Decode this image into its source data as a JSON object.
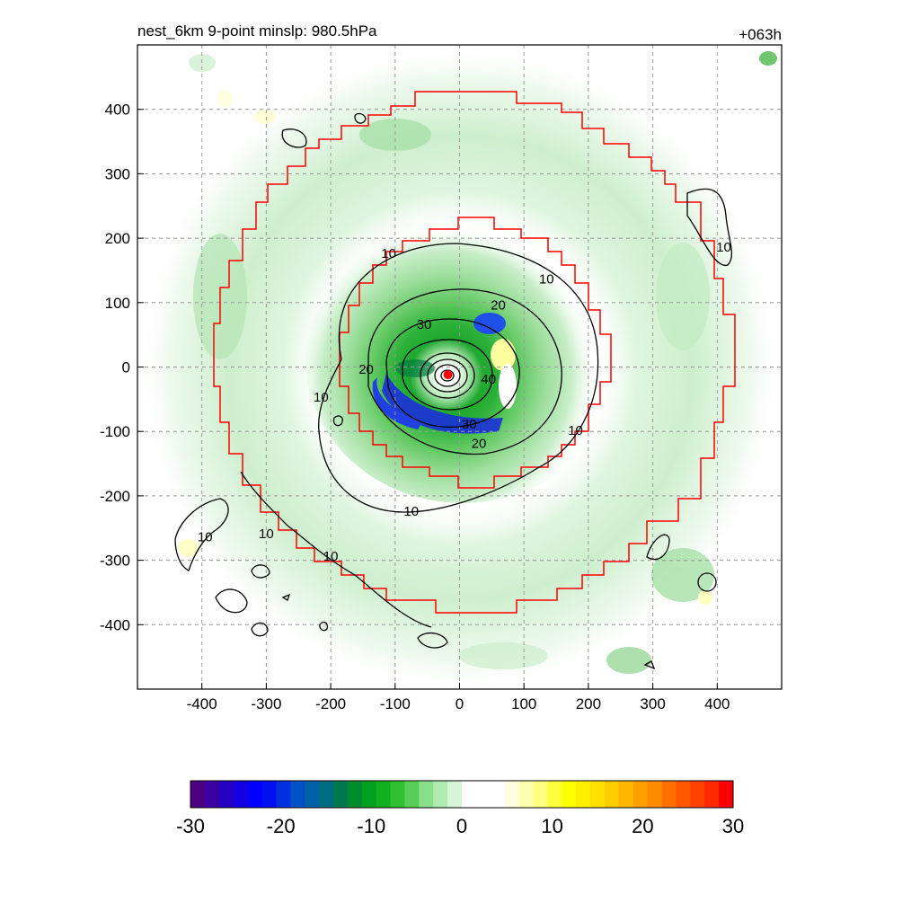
{
  "chart_data": {
    "type": "heatmap",
    "title_left": "nest_6km  9-point minslp: 980.5hPa",
    "title_right": "+063h",
    "xlim": [
      -500,
      500
    ],
    "ylim": [
      -500,
      500
    ],
    "x_ticks": [
      -400,
      -300,
      -200,
      -100,
      0,
      100,
      200,
      300,
      400
    ],
    "y_ticks": [
      400,
      300,
      200,
      100,
      0,
      -100,
      -200,
      -300,
      -400
    ],
    "grid": true,
    "storm_center": {
      "x": -18,
      "y": -12,
      "color": "#ff0000"
    },
    "contour_labels": [
      {
        "text": "10",
        "x": -110,
        "y": 175
      },
      {
        "text": "10",
        "x": 135,
        "y": 135
      },
      {
        "text": "10",
        "x": 410,
        "y": 185
      },
      {
        "text": "10",
        "x": -215,
        "y": -48
      },
      {
        "text": "10",
        "x": 180,
        "y": -100
      },
      {
        "text": "10",
        "x": -75,
        "y": -225
      },
      {
        "text": "10",
        "x": -300,
        "y": -260
      },
      {
        "text": "10",
        "x": -200,
        "y": -295
      },
      {
        "text": "10",
        "x": -395,
        "y": -265
      },
      {
        "text": "20",
        "x": 60,
        "y": 95
      },
      {
        "text": "20",
        "x": -145,
        "y": -5
      },
      {
        "text": "20",
        "x": 30,
        "y": -120
      },
      {
        "text": "30",
        "x": -55,
        "y": 65
      },
      {
        "text": "30",
        "x": 15,
        "y": -90
      },
      {
        "text": "40",
        "x": 45,
        "y": -20
      }
    ],
    "colorbar": {
      "min": -30,
      "max": 30,
      "ticks": [
        -30,
        -20,
        -10,
        0,
        10,
        20,
        30
      ],
      "tick_labels": [
        "-30",
        "-20",
        "-10",
        "0",
        "10",
        "20",
        "30"
      ],
      "colors": [
        "#4b0082",
        "#3a00a0",
        "#2600c0",
        "#1400e0",
        "#0000ff",
        "#0010f0",
        "#0030e0",
        "#0050c8",
        "#0060a8",
        "#006c80",
        "#007850",
        "#008a30",
        "#00a020",
        "#10b020",
        "#30c030",
        "#58d058",
        "#88e088",
        "#b0ecb0",
        "#d6f5d6",
        "#ffffff",
        "#ffffff",
        "#ffffff",
        "#ffffe0",
        "#ffffb0",
        "#ffff80",
        "#ffff40",
        "#ffff00",
        "#fff000",
        "#ffe000",
        "#ffcc00",
        "#ffb800",
        "#ffa000",
        "#ff8c00",
        "#ff7000",
        "#ff5800",
        "#ff4000",
        "#ff2800",
        "#ff0000"
      ]
    }
  },
  "colors": {
    "inner_box": "#ff0000",
    "outer_box": "#ff0000",
    "contour": "#000000",
    "grid": "#999999"
  }
}
